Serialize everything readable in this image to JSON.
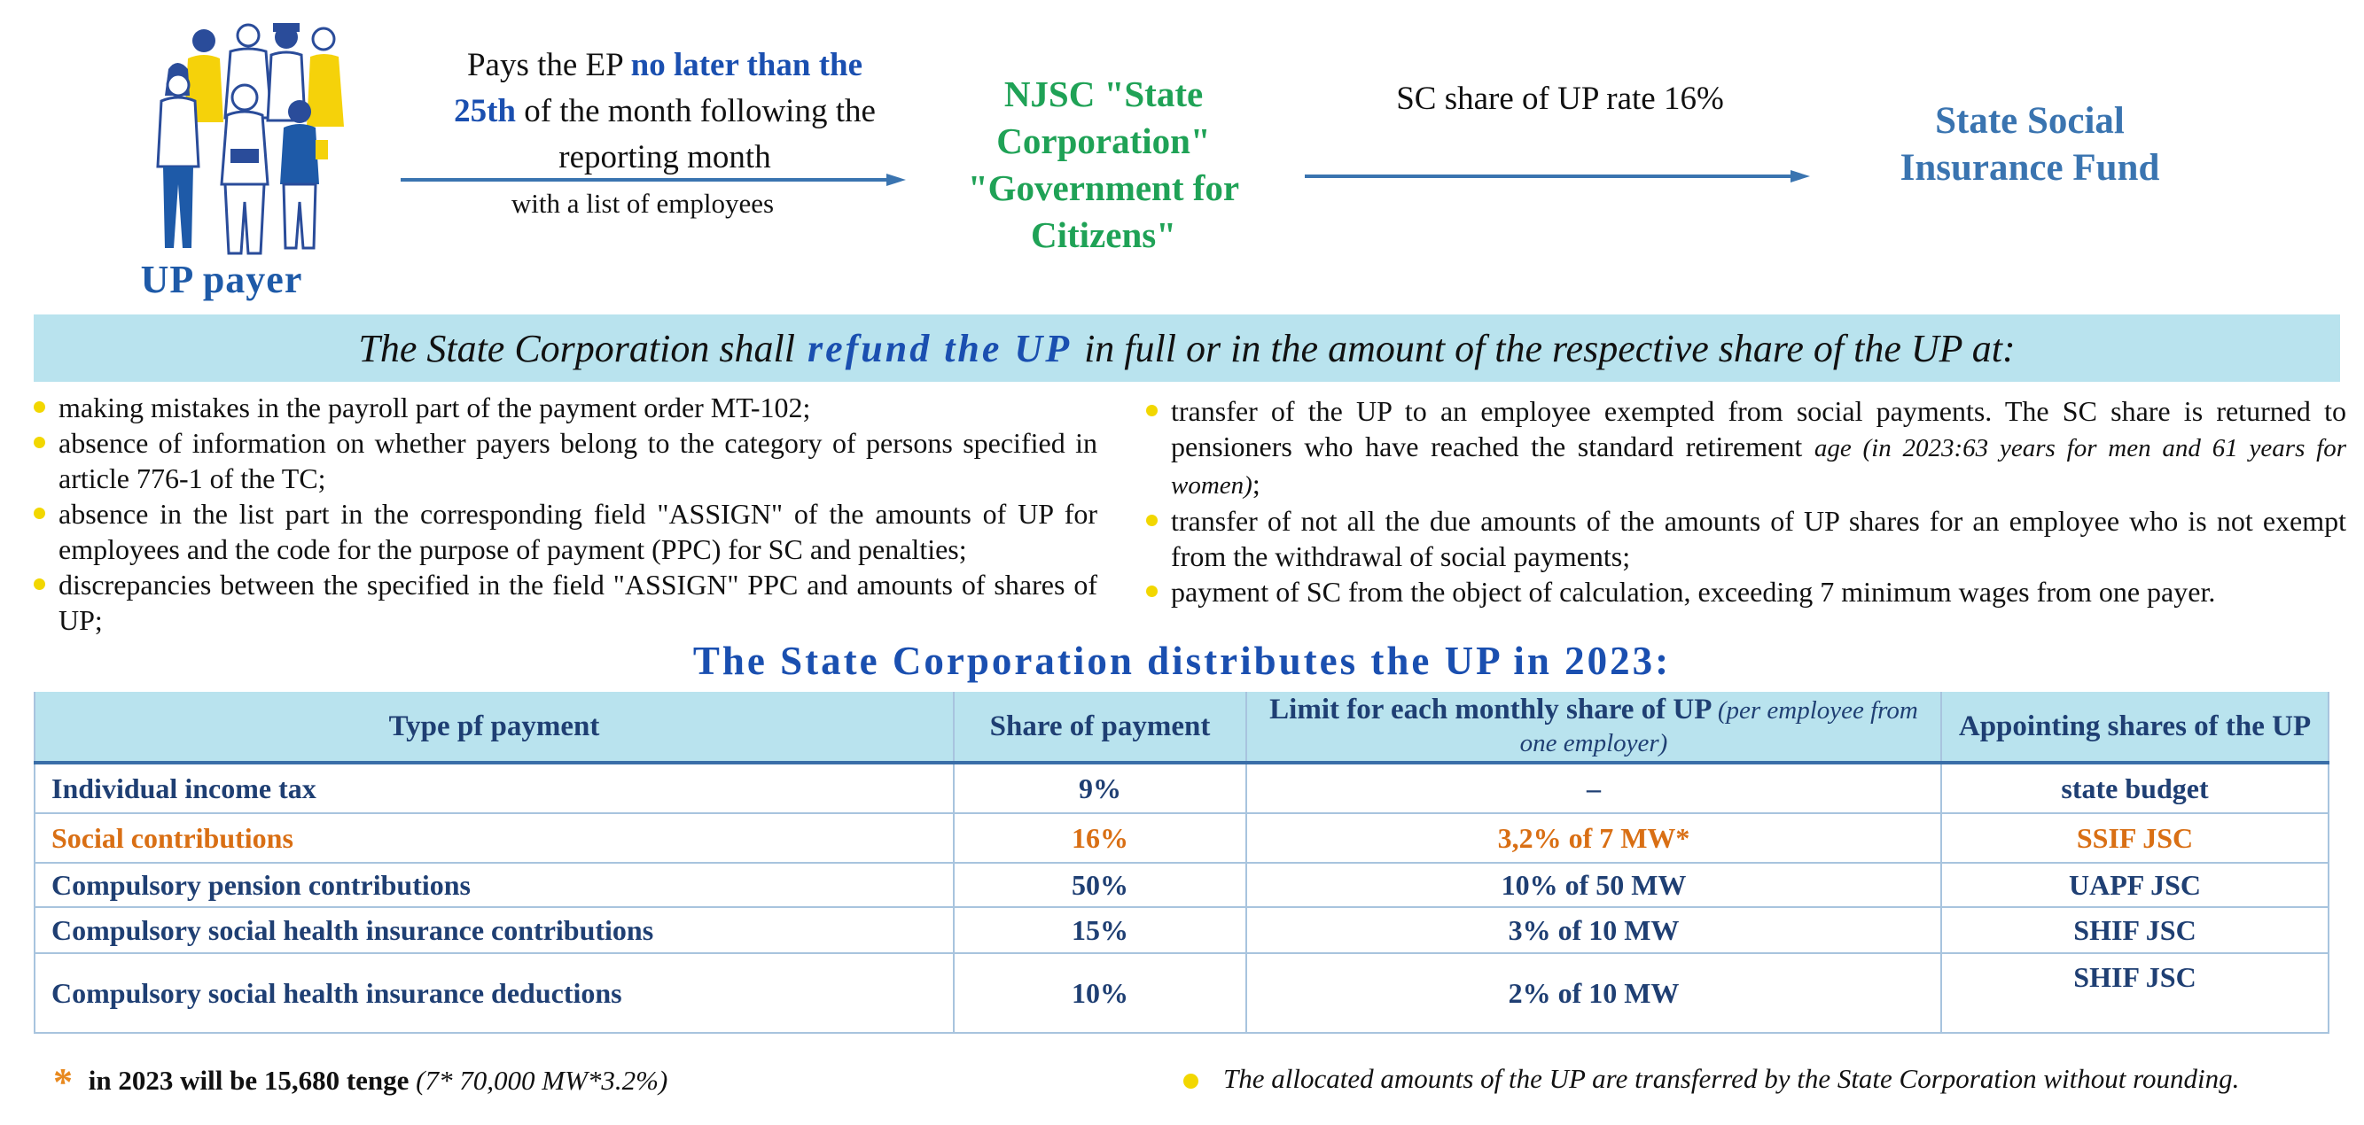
{
  "flow": {
    "payer_label": "UP payer",
    "pays_prefix": "Pays the EP",
    "pays_highlight": "no later than the 25th",
    "pays_suffix": "of the month following the reporting month",
    "with_list": "with a list of employees",
    "corporation": "NJSC \"State Corporation\" \"Government for Citizens\"",
    "sc_share": "SC share of UP rate 16%",
    "fund": "State Social Insurance Fund"
  },
  "banner": {
    "prefix": "The State Corporation shall",
    "highlight": "refund the UP",
    "suffix": "in full or in the amount of the respective share of the UP at:"
  },
  "left_bullets": [
    "making mistakes in the payroll part of the payment order MT-102;",
    "absence of information on whether payers belong to the category of persons specified in article 776-1 of the TC;",
    "absence in the list part in the corresponding field \"ASSIGN\" of the amounts of UP for employees and the code for the purpose of payment (PPC) for SC and penalties;",
    "discrepancies between the specified in the field \"ASSIGN\" PPC and amounts of shares of UP;"
  ],
  "right_bullets": {
    "first_main": "transfer of the UP to an employee exempted from social payments. The SC share is returned to pensioners who have reached the standard retirement",
    "first_italic": "age (in 2023:63 years for men and 61 years for women)",
    "first_end": ";",
    "second": "transfer of not all the due amounts of the amounts of UP shares for an employee who is not exempt from the withdrawal of social payments;",
    "third": "payment of SC from the object of calculation, exceeding 7 minimum wages from one payer."
  },
  "distribution": {
    "title": "The State Corporation distributes the UP in 2023:",
    "headers": {
      "type": "Type pf payment",
      "share": "Share of payment",
      "limit": "Limit for each monthly share of UP",
      "limit_note": "(per employee from one employer)",
      "appointing": "Appointing shares of the UP"
    },
    "rows": [
      {
        "type": "Individual income tax",
        "share": "9%",
        "limit": "–",
        "appointing": "state budget"
      },
      {
        "type": "Social contributions",
        "share": "16%",
        "limit": "3,2% of 7 MW*",
        "appointing": "SSIF JSC"
      },
      {
        "type": "Compulsory pension contributions",
        "share": "50%",
        "limit": "10% of 50 MW",
        "appointing": "UAPF JSC"
      },
      {
        "type": "Compulsory social health insurance contributions",
        "share": "15%",
        "limit": "3% of 10 MW",
        "appointing": "SHIF JSC"
      },
      {
        "type": "Compulsory social health insurance deductions",
        "share": "10%",
        "limit": "2% of 10 MW",
        "appointing": "SHIF JSC"
      }
    ]
  },
  "footnote": {
    "star": "*",
    "bold": "in 2023 will be 15,680 tenge",
    "italic": "(7* 70,000 MW*3.2%)"
  },
  "footer_note": "The allocated amounts of the UP are transferred by the State Corporation without rounding.",
  "colors": {
    "accent_blue": "#1a4fb0",
    "green": "#1fa256",
    "fund_blue": "#3a74b0",
    "orange": "#d96f14",
    "banner_bg": "#b9e3ee",
    "bullet_yellow": "#f2d700"
  }
}
